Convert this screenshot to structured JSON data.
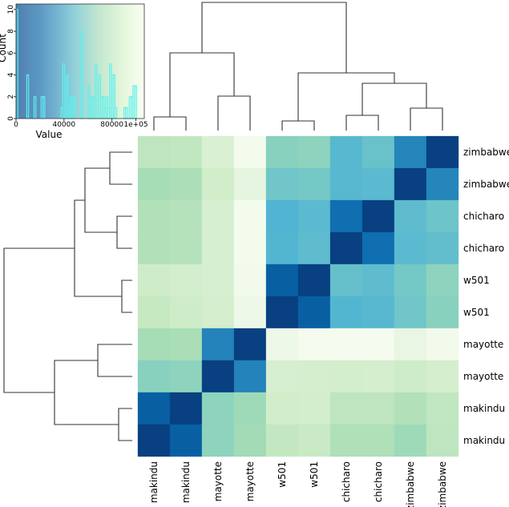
{
  "chart_data": {
    "type": "heatmap",
    "subtype": "clustermap",
    "colormap": "GnBu_r",
    "vmin": 0,
    "vmax": 100000,
    "row_labels": [
      "zimbabwe",
      "zimbabwe",
      "chicharo",
      "chicharo",
      "w501",
      "w501",
      "mayotte",
      "mayotte",
      "makindu",
      "makindu"
    ],
    "col_labels": [
      "makindu",
      "makindu",
      "mayotte",
      "mayotte",
      "w501",
      "w501",
      "chicharo",
      "chicharo",
      "zimbabwe",
      "zimbabwe"
    ],
    "values": [
      [
        70000,
        71000,
        83000,
        98000,
        54000,
        55000,
        40000,
        45000,
        23000,
        0
      ],
      [
        62000,
        64000,
        78000,
        90000,
        47000,
        48000,
        40000,
        41000,
        0,
        23000
      ],
      [
        66000,
        67000,
        82000,
        98000,
        38000,
        41000,
        15000,
        0,
        42000,
        46000
      ],
      [
        66000,
        67000,
        82000,
        98000,
        39000,
        42000,
        0,
        15000,
        41000,
        43000
      ],
      [
        77000,
        79000,
        82000,
        97000,
        10000,
        0,
        44000,
        42000,
        48000,
        55000
      ],
      [
        73000,
        76000,
        80000,
        95000,
        0,
        10000,
        39000,
        40000,
        47000,
        54000
      ],
      [
        62000,
        63000,
        22000,
        0,
        95000,
        99000,
        99000,
        99000,
        92000,
        97000
      ],
      [
        54000,
        55000,
        0,
        22000,
        81000,
        80000,
        79000,
        80000,
        76000,
        80000
      ],
      [
        10000,
        0,
        55000,
        60000,
        78000,
        79000,
        70000,
        70000,
        66000,
        71000
      ],
      [
        0,
        10000,
        55000,
        61000,
        72000,
        74000,
        65000,
        65000,
        60000,
        70000
      ]
    ],
    "color_key": {
      "type": "histogram",
      "xlabel": "Value",
      "ylabel": "Count",
      "xticks": [
        "0",
        "40000",
        "80000",
        "1e+05"
      ],
      "xtick_values": [
        0,
        40000,
        80000,
        100000
      ],
      "yticks": [
        "0",
        "2",
        "4",
        "6",
        "8",
        "10"
      ],
      "ytick_values": [
        0,
        2,
        4,
        6,
        8,
        10
      ],
      "xlim": [
        0,
        107000
      ],
      "ylim": [
        0,
        10.5
      ],
      "bar_color": "#5ff0ee"
    },
    "dendrograms": {
      "rows": true,
      "cols": true,
      "line_color": "#333333"
    }
  }
}
